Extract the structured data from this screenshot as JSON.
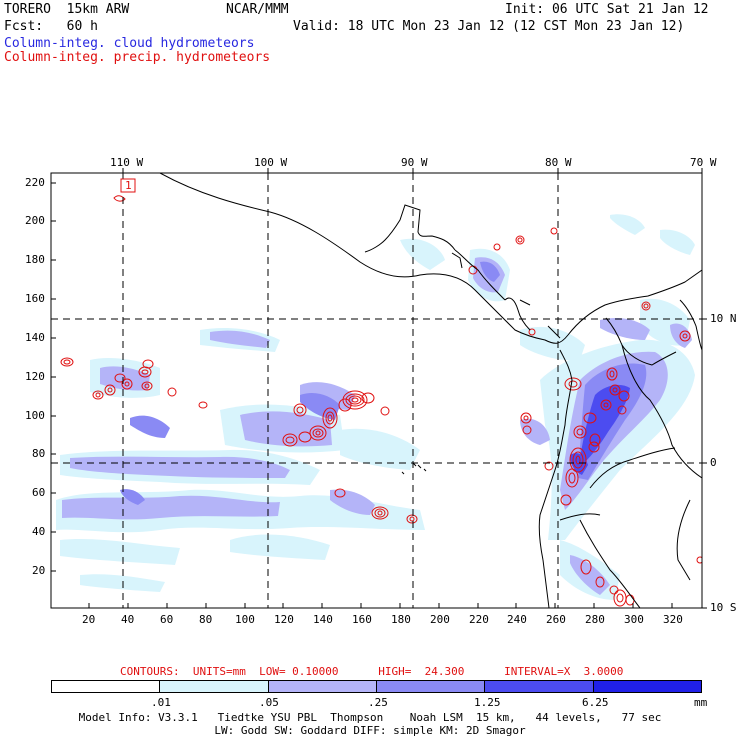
{
  "header": {
    "model": "TORERO  15km ARW",
    "center": "NCAR/MMM",
    "init": "Init: 06 UTC Sat 21 Jan 12",
    "fcst": "Fcst:   60 h",
    "valid": "Valid: 18 UTC Mon 23 Jan 12 (12 CST Mon 23 Jan 12)",
    "field_cloud": "Column-integ. cloud hydrometeors",
    "field_precip": "Column-integ. precip. hydrometeors"
  },
  "colors": {
    "cloud_text": "#2828e0",
    "precip_text": "#e01010",
    "levels": [
      "#ffffff",
      "#d8f4fc",
      "#b4b4f8",
      "#8a8af4",
      "#4c4cf0",
      "#2020e8"
    ],
    "contour": "#e01010"
  },
  "map": {
    "lon_labels": [
      "110 W",
      "100 W",
      "90 W",
      "80 W",
      "70 W"
    ],
    "lat_labels": [
      "10 N",
      "0",
      "10 S"
    ],
    "y_ticks": [
      "220",
      "200",
      "180",
      "160",
      "140",
      "120",
      "100",
      "80",
      "60",
      "40",
      "20"
    ],
    "x_ticks": [
      "20",
      "40",
      "60",
      "80",
      "100",
      "120",
      "140",
      "160",
      "180",
      "200",
      "220",
      "240",
      "260",
      "280",
      "300",
      "320"
    ],
    "max_box_label": "1"
  },
  "contours": {
    "title": "CONTOURS:  UNITS=mm  LOW= 0.10000      HIGH=  24.300      INTERVAL=X  3.0000"
  },
  "colorbar": {
    "labels": [
      ".01",
      ".05",
      ".25",
      "1.25",
      "6.25"
    ],
    "unit": "mm"
  },
  "footer": {
    "line1": "Model Info: V3.3.1   Tiedtke YSU PBL  Thompson    Noah LSM  15 km,   44 levels,   77 sec",
    "line2": "LW: Godd SW: Goddard DIFF: simple KM: 2D Smagor"
  }
}
